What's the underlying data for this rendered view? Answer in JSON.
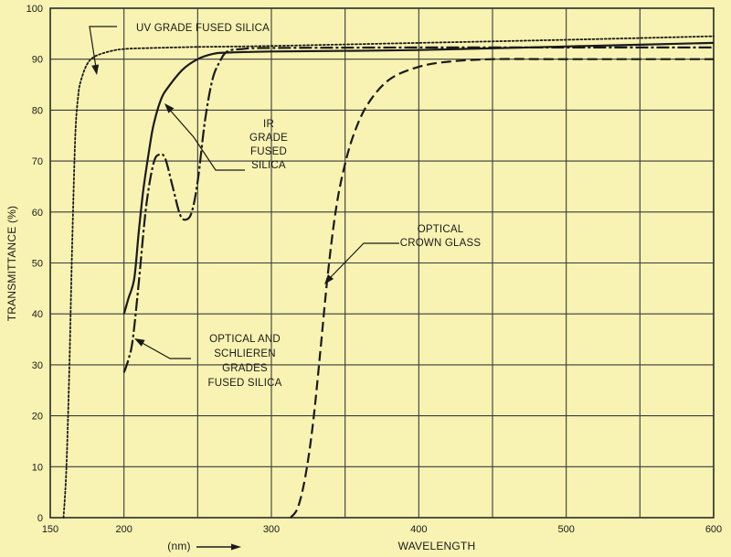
{
  "chart_data": {
    "type": "line",
    "title": "",
    "xlabel": "WAVELENGTH",
    "xunit": "(nm)",
    "ylabel": "TRANSMITTANCE (%)",
    "xlim": [
      150,
      600
    ],
    "ylim": [
      0,
      100
    ],
    "grid": true,
    "x_ticks": [
      150,
      200,
      250,
      300,
      350,
      400,
      450,
      500,
      550,
      600
    ],
    "x_tick_labels": [
      "150",
      "200",
      "",
      "300",
      "",
      "400",
      "",
      "500",
      "",
      "600"
    ],
    "y_ticks": [
      0,
      10,
      20,
      30,
      40,
      50,
      60,
      70,
      80,
      90,
      100
    ],
    "y_tick_labels": [
      "0",
      "10",
      "20",
      "30",
      "40",
      "50",
      "60",
      "70",
      "80",
      "90",
      "100"
    ],
    "series": [
      {
        "style": "dotted",
        "label_lines": [
          "UV GRADE FUSED SILICA"
        ],
        "x": [
          159,
          161,
          163,
          165,
          167,
          169,
          171,
          175,
          180,
          190,
          200,
          220,
          250,
          300,
          400,
          500,
          600
        ],
        "y": [
          0,
          10,
          30,
          55,
          75,
          83,
          86,
          89,
          90.5,
          91.5,
          92,
          92.2,
          92.4,
          92.6,
          93.2,
          93.8,
          94.5
        ]
      },
      {
        "style": "solid",
        "label_lines": [
          "IR",
          "GRADE",
          "FUSED",
          "SILICA"
        ],
        "x": [
          200,
          203,
          207,
          210,
          213,
          217,
          220,
          225,
          230,
          240,
          250,
          260,
          270,
          300,
          400,
          500,
          600
        ],
        "y": [
          40,
          43,
          47,
          56,
          64,
          72,
          77,
          82,
          84.5,
          88,
          90,
          91,
          91.3,
          91.5,
          91.8,
          92.5,
          93.2
        ]
      },
      {
        "style": "dash-dot",
        "label_lines": [
          "OPTICAL AND",
          "SCHLIEREN",
          "GRADES",
          "FUSED SILICA"
        ],
        "x": [
          200,
          203,
          206,
          210,
          215,
          220,
          224,
          228,
          233,
          238,
          242,
          246,
          250,
          255,
          260,
          265,
          270,
          280,
          300,
          400,
          500,
          600
        ],
        "y": [
          28.5,
          31,
          35,
          46,
          61,
          69.5,
          71.3,
          70.5,
          65,
          59.5,
          58.5,
          60,
          66,
          78,
          86,
          89.5,
          91.5,
          92,
          92.2,
          92.3,
          92.3,
          92.3
        ]
      },
      {
        "style": "dashed",
        "label_lines": [
          "OPTICAL",
          "CROWN GLASS"
        ],
        "x": [
          313,
          318,
          323,
          328,
          333,
          338,
          343,
          348,
          355,
          365,
          380,
          400,
          420,
          450,
          500,
          600
        ],
        "y": [
          0,
          2,
          8,
          18,
          32,
          47,
          59,
          67,
          74.5,
          81,
          86,
          88.5,
          89.5,
          90,
          90,
          90
        ]
      }
    ]
  }
}
